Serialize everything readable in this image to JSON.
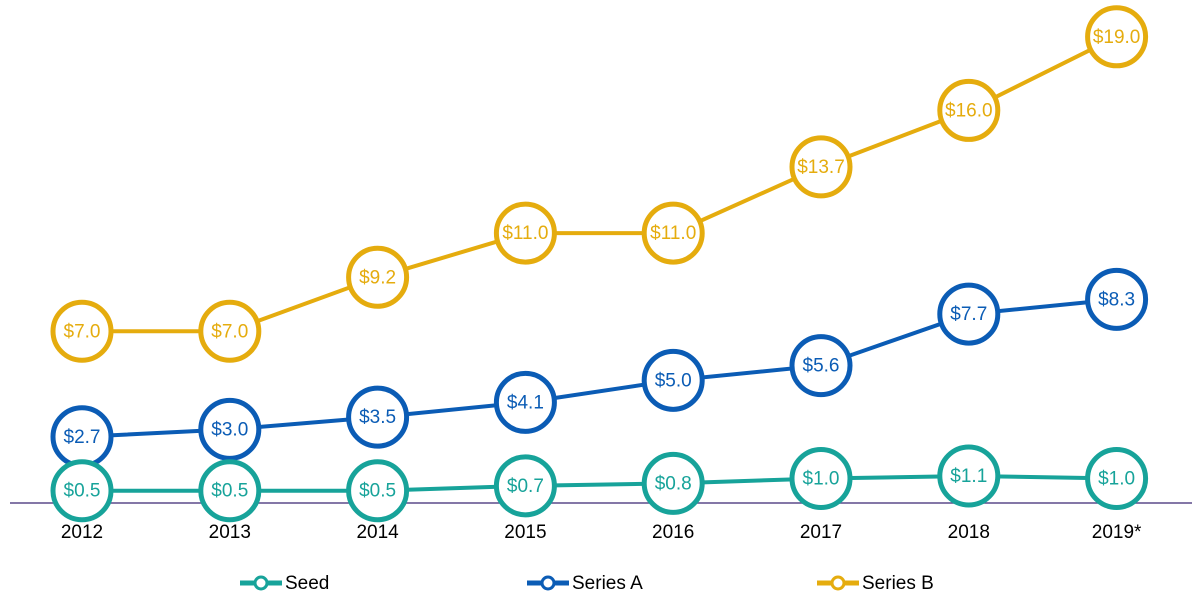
{
  "chart_data": {
    "type": "line",
    "categories": [
      "2012",
      "2013",
      "2014",
      "2015",
      "2016",
      "2017",
      "2018",
      "2019*"
    ],
    "ylim": [
      0,
      20.5
    ],
    "series": [
      {
        "name": "Seed",
        "color": "#17a39a",
        "values": [
          0.5,
          0.5,
          0.5,
          0.7,
          0.8,
          1.0,
          1.1,
          1.0
        ],
        "value_labels": [
          "$0.5",
          "$0.5",
          "$0.5",
          "$0.7",
          "$0.8",
          "$1.0",
          "$1.1",
          "$1.0"
        ]
      },
      {
        "name": "Series A",
        "color": "#0b5cb5",
        "values": [
          2.7,
          3.0,
          3.5,
          4.1,
          5.0,
          5.6,
          7.7,
          8.3
        ],
        "value_labels": [
          "$2.7",
          "$3.0",
          "$3.5",
          "$4.1",
          "$5.0",
          "$5.6",
          "$7.7",
          "$8.3"
        ]
      },
      {
        "name": "Series B",
        "color": "#e5ac0e",
        "values": [
          7.0,
          7.0,
          9.2,
          11.0,
          11.0,
          13.7,
          16.0,
          19.0
        ],
        "value_labels": [
          "$7.0",
          "$7.0",
          "$9.2",
          "$11.0",
          "$11.0",
          "$13.7",
          "$16.0",
          "$19.0"
        ]
      }
    ],
    "legend": "bottom"
  }
}
